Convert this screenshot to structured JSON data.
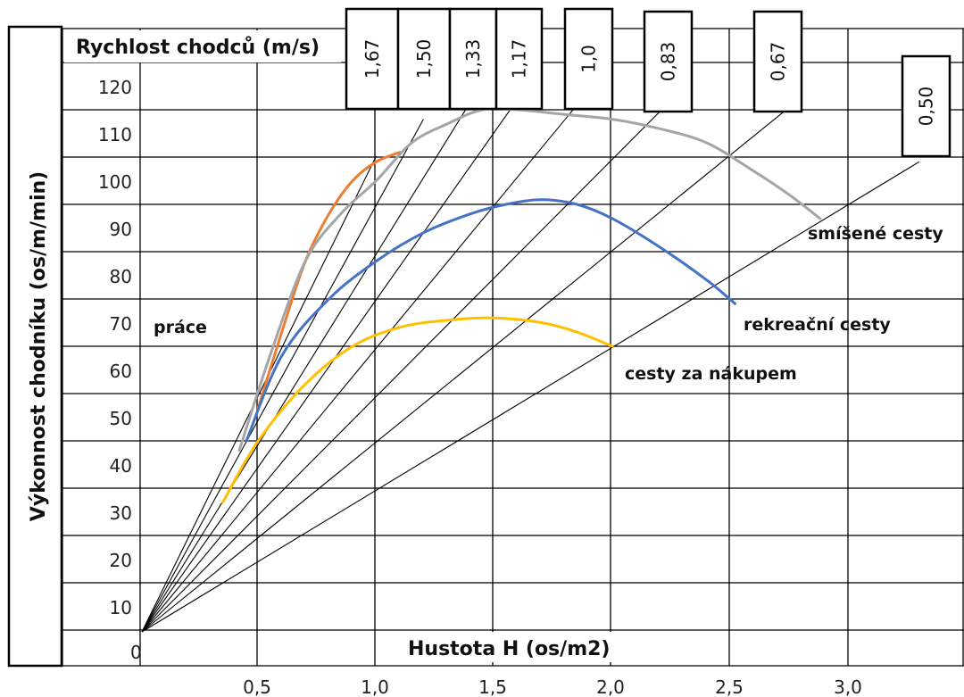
{
  "chart_data": {
    "type": "line",
    "title": "Rychlost chodců (m/s)",
    "xlabel": "Hustota H (os/m2)",
    "ylabel": "Výkonnost chodníku (os/m/min)",
    "xlim": [
      0,
      3.4
    ],
    "ylim": [
      0,
      120
    ],
    "grid": true,
    "x_origin_label": "0",
    "x_ticks": [
      0.5,
      1.0,
      1.5,
      2.0,
      2.5,
      3.0
    ],
    "x_tick_labels": [
      "0,5",
      "1,0",
      "1,5",
      "2,0",
      "2,5",
      "3,0"
    ],
    "y_ticks": [
      10,
      20,
      30,
      40,
      50,
      60,
      70,
      80,
      90,
      100,
      110,
      120
    ],
    "y_tick_labels": [
      "10",
      "20",
      "30",
      "40",
      "50",
      "60",
      "70",
      "80",
      "90",
      "100",
      "110",
      "120"
    ],
    "speed_lines": [
      {
        "label": "1,67",
        "speed": 1.67,
        "end_x": 1.0
      },
      {
        "label": "1,50",
        "speed": 1.5,
        "end_x": 1.2
      },
      {
        "label": "1,33",
        "speed": 1.33,
        "end_x": 1.4
      },
      {
        "label": "1,17",
        "speed": 1.17,
        "end_x": 1.6
      },
      {
        "label": "1,0",
        "speed": 1.0,
        "end_x": 1.9
      },
      {
        "label": "0,83",
        "speed": 0.83,
        "end_x": 2.2
      },
      {
        "label": "0,67",
        "speed": 0.67,
        "end_x": 2.75
      },
      {
        "label": "0,50",
        "speed": 0.5,
        "end_x": 3.3
      }
    ],
    "series": [
      {
        "name": "práce",
        "color": "#ED7D31",
        "x": [
          0.5,
          0.6,
          0.7,
          0.8,
          0.9,
          1.0,
          1.1
        ],
        "y": [
          47,
          63,
          78,
          88,
          95,
          99,
          101
        ]
      },
      {
        "name": "smíšené cesty",
        "color": "#A5A5A5",
        "x": [
          0.42,
          0.55,
          0.7,
          0.85,
          1.0,
          1.15,
          1.3,
          1.45,
          1.6,
          1.8,
          2.0,
          2.2,
          2.4,
          2.6,
          2.75,
          2.88
        ],
        "y": [
          38,
          58,
          78,
          88,
          95,
          103,
          107,
          110,
          110,
          109,
          108,
          106,
          103,
          97,
          92,
          87
        ]
      },
      {
        "name": "rekreační cesty",
        "color": "#4472C4",
        "x": [
          0.45,
          0.6,
          0.8,
          1.0,
          1.2,
          1.4,
          1.55,
          1.7,
          1.85,
          2.0,
          2.2,
          2.4,
          2.52
        ],
        "y": [
          40,
          58,
          70,
          78,
          84,
          88,
          90,
          91,
          90,
          87,
          81,
          74,
          69
        ]
      },
      {
        "name": "cesty za nákupem",
        "color": "#FFC000",
        "x": [
          0.35,
          0.5,
          0.7,
          0.9,
          1.1,
          1.3,
          1.5,
          1.7,
          1.85,
          2.0
        ],
        "y": [
          27,
          40,
          52,
          60,
          64,
          65.5,
          66,
          65,
          63,
          60
        ]
      }
    ],
    "series_labels": [
      {
        "series": "práce",
        "text": "práce"
      },
      {
        "series": "smíšené cesty",
        "text": "smíšené cesty"
      },
      {
        "series": "rekreační cesty",
        "text": "rekreační cesty"
      },
      {
        "series": "cesty za nákupem",
        "text": "cesty za nákupem"
      }
    ]
  }
}
